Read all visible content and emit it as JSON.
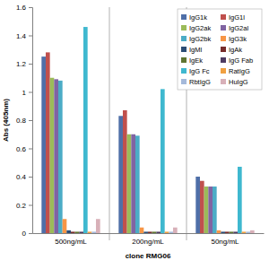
{
  "chart_data": {
    "type": "bar",
    "x_label": "clone RMG06",
    "y_label": "Abs (405nm)",
    "categories": [
      "500ng/mL",
      "200ng/mL",
      "50ng/mL"
    ],
    "series": [
      {
        "name": "IgG1k",
        "color": "#4f6fa8",
        "values": [
          1.25,
          0.83,
          0.4
        ]
      },
      {
        "name": "IgG1l",
        "color": "#c0504d",
        "values": [
          1.28,
          0.87,
          0.37
        ]
      },
      {
        "name": "IgG2ak",
        "color": "#9bbb59",
        "values": [
          1.1,
          0.7,
          0.33
        ]
      },
      {
        "name": "IgG2al",
        "color": "#8064a2",
        "values": [
          1.09,
          0.7,
          0.33
        ]
      },
      {
        "name": "IgG2bk",
        "color": "#4bacc6",
        "values": [
          1.08,
          0.69,
          0.33
        ]
      },
      {
        "name": "IgG3k",
        "color": "#f79646",
        "values": [
          0.1,
          0.04,
          0.02
        ]
      },
      {
        "name": "IgMl",
        "color": "#2c4d75",
        "values": [
          0.02,
          0.01,
          0.01
        ]
      },
      {
        "name": "IgAk",
        "color": "#772c2a",
        "values": [
          0.01,
          0.01,
          0.01
        ]
      },
      {
        "name": "IgEk",
        "color": "#5f7530",
        "values": [
          0.01,
          0.01,
          0.01
        ]
      },
      {
        "name": "IgG Fab",
        "color": "#4d3b62",
        "values": [
          0.01,
          0.01,
          0.01
        ]
      },
      {
        "name": "IgG Fc",
        "color": "#3fb8cf",
        "values": [
          1.46,
          1.02,
          0.47
        ]
      },
      {
        "name": "RatIgG",
        "color": "#f0a040",
        "values": [
          0.01,
          0.01,
          0.01
        ]
      },
      {
        "name": "RbtIgG",
        "color": "#a5b9da",
        "values": [
          0.01,
          0.01,
          0.01
        ]
      },
      {
        "name": "HuIgG",
        "color": "#d8b0b8",
        "values": [
          0.1,
          0.04,
          0.02
        ]
      }
    ],
    "ylim": [
      0,
      1.6
    ],
    "yticks": [
      0,
      0.2,
      0.4,
      0.6,
      0.8,
      1,
      1.2,
      1.4,
      1.6
    ],
    "grid": false,
    "legend": "top-right"
  }
}
